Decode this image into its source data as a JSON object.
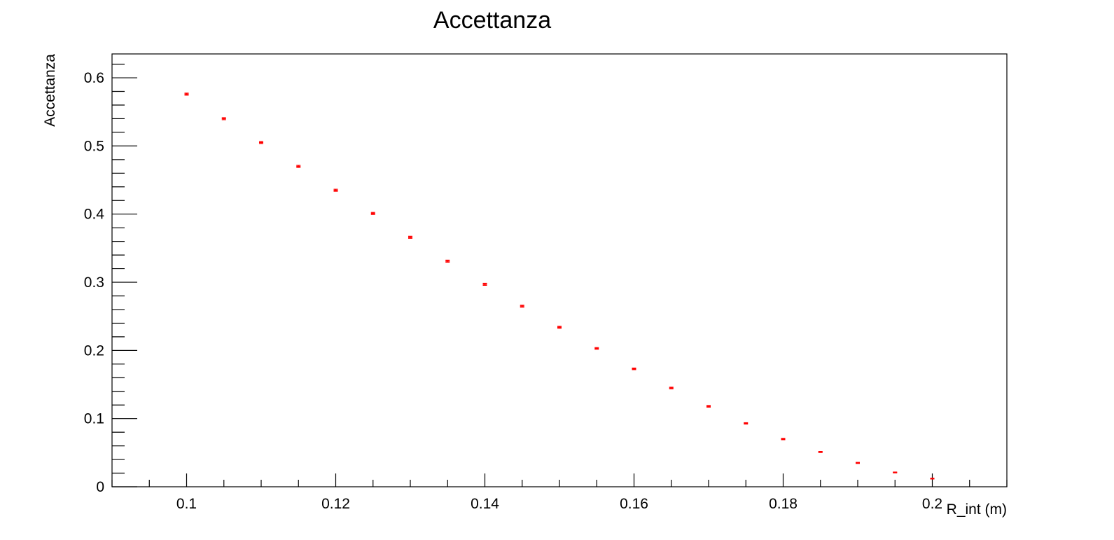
{
  "chart_data": {
    "type": "scatter",
    "title": "Accettanza",
    "xlabel": "R_int (m)",
    "ylabel": "Accettanza",
    "xlim": [
      0.09,
      0.21
    ],
    "ylim": [
      0,
      0.635
    ],
    "xticks": [
      {
        "value": 0.1,
        "label": "0.1"
      },
      {
        "value": 0.12,
        "label": "0.12"
      },
      {
        "value": 0.14,
        "label": "0.14"
      },
      {
        "value": 0.16,
        "label": "0.16"
      },
      {
        "value": 0.18,
        "label": "0.18"
      },
      {
        "value": 0.2,
        "label": "0.2"
      }
    ],
    "yticks": [
      {
        "value": 0,
        "label": "0"
      },
      {
        "value": 0.1,
        "label": "0.1"
      },
      {
        "value": 0.2,
        "label": "0.2"
      },
      {
        "value": 0.3,
        "label": "0.3"
      },
      {
        "value": 0.4,
        "label": "0.4"
      },
      {
        "value": 0.5,
        "label": "0.5"
      },
      {
        "value": 0.6,
        "label": "0.6"
      }
    ],
    "grid": false,
    "marker_color": "#ff0000",
    "series": [
      {
        "x": [
          0.1,
          0.105,
          0.11,
          0.115,
          0.12,
          0.125,
          0.13,
          0.135,
          0.14,
          0.145,
          0.15,
          0.155,
          0.16,
          0.165,
          0.17,
          0.175,
          0.18,
          0.185,
          0.19,
          0.195,
          0.2
        ],
        "y": [
          0.576,
          0.54,
          0.505,
          0.47,
          0.435,
          0.401,
          0.366,
          0.331,
          0.297,
          0.265,
          0.234,
          0.203,
          0.173,
          0.145,
          0.118,
          0.093,
          0.07,
          0.051,
          0.035,
          0.021,
          0.012
        ],
        "yerr": [
          0.0015,
          0.0015,
          0.0015,
          0.0015,
          0.0015,
          0.0015,
          0.0015,
          0.0015,
          0.0015,
          0.0015,
          0.0015,
          0.0012,
          0.0012,
          0.0012,
          0.0012,
          0.001,
          0.001,
          0.0008,
          0.0008,
          0.0006,
          0.0006
        ]
      }
    ]
  }
}
